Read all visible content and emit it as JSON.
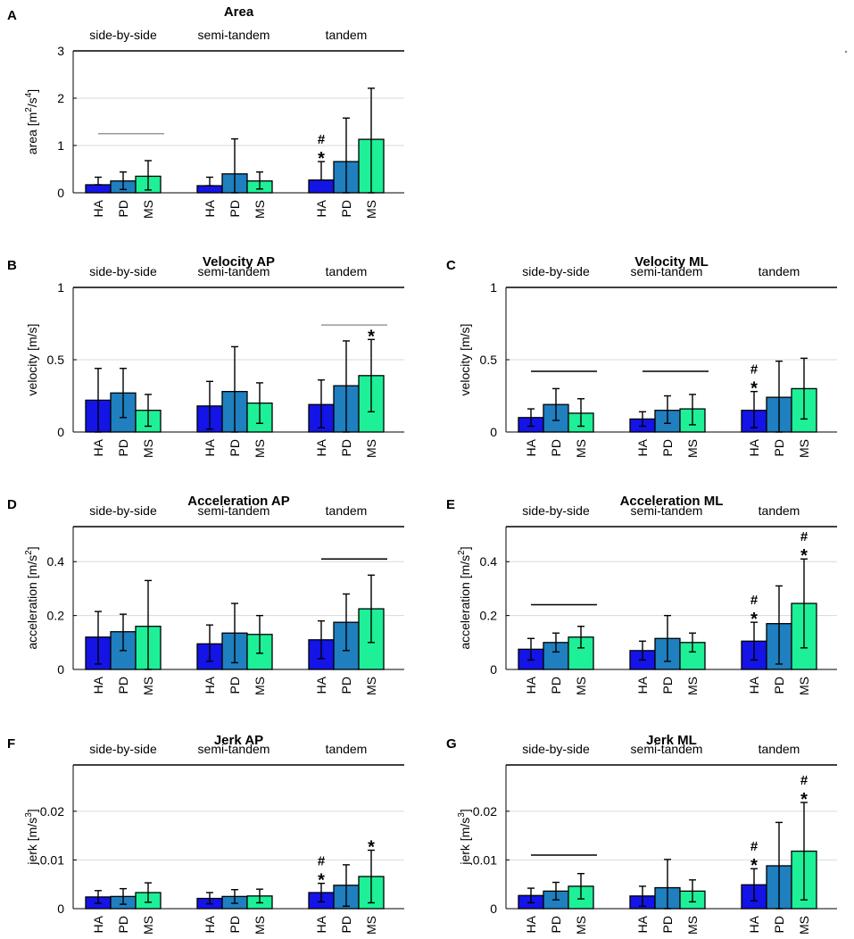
{
  "groups": [
    "side-by-side",
    "semi-tandem",
    "tandem"
  ],
  "categories": [
    "HA",
    "PD",
    "MS"
  ],
  "colors": {
    "HA": "#1414e6",
    "PD": "#1f7fbf",
    "MS": "#1ef098"
  },
  "chart_data": [
    {
      "id": "A",
      "letter": "A",
      "type": "bar",
      "title": "Area",
      "ylabel": "area [m²/s⁴]",
      "ylabel_main": "area [m",
      "ylabel_sup1": "2",
      "ylabel_mid": "/s",
      "ylabel_sup2": "4",
      "ylabel_end": "]",
      "ylim": [
        0,
        3
      ],
      "yticks": [
        0,
        1,
        2,
        3
      ],
      "ytick_labels": [
        "0",
        "1",
        "2",
        "3"
      ],
      "groups": [
        "side-by-side",
        "semi-tandem",
        "tandem"
      ],
      "series": [
        {
          "name": "HA",
          "values": [
            0.17,
            0.15,
            0.27
          ],
          "err_low": [
            0.17,
            0.15,
            0.27
          ],
          "err_high": [
            0.33,
            0.33,
            0.66
          ]
        },
        {
          "name": "PD",
          "values": [
            0.25,
            0.4,
            0.66
          ],
          "err_low": [
            0.07,
            0.0,
            0.0
          ],
          "err_high": [
            0.44,
            1.14,
            1.58
          ]
        },
        {
          "name": "MS",
          "values": [
            0.35,
            0.25,
            1.13
          ],
          "err_low": [
            0.06,
            0.08,
            0.0
          ],
          "err_high": [
            0.68,
            0.44,
            2.21
          ]
        }
      ],
      "annotations": [
        {
          "group": 2,
          "bar": 0,
          "symbols": [
            "#",
            "*"
          ]
        }
      ],
      "sig_lines": [
        {
          "group": 0,
          "y": 1.25,
          "color": "#999999"
        }
      ]
    },
    {
      "id": "B",
      "letter": "B",
      "type": "bar",
      "title": "Velocity AP",
      "ylabel": "velocity [m/s]",
      "ylim": [
        0,
        1
      ],
      "yticks": [
        0,
        0.5,
        1
      ],
      "ytick_labels": [
        "0",
        "0.5",
        "1"
      ],
      "groups": [
        "side-by-side",
        "semi-tandem",
        "tandem"
      ],
      "series": [
        {
          "name": "HA",
          "values": [
            0.22,
            0.18,
            0.19
          ],
          "err_low": [
            0.0,
            0.02,
            0.03
          ],
          "err_high": [
            0.44,
            0.35,
            0.36
          ]
        },
        {
          "name": "PD",
          "values": [
            0.27,
            0.28,
            0.32
          ],
          "err_low": [
            0.1,
            0.0,
            0.0
          ],
          "err_high": [
            0.44,
            0.59,
            0.63
          ]
        },
        {
          "name": "MS",
          "values": [
            0.15,
            0.2,
            0.39
          ],
          "err_low": [
            0.04,
            0.06,
            0.14
          ],
          "err_high": [
            0.26,
            0.34,
            0.64
          ]
        }
      ],
      "annotations": [
        {
          "group": 2,
          "bar": 2,
          "symbols": [
            "*"
          ]
        }
      ],
      "sig_lines": [
        {
          "group": 2,
          "y": 0.74,
          "color": "#999999"
        }
      ]
    },
    {
      "id": "C",
      "letter": "C",
      "type": "bar",
      "title": "Velocity ML",
      "ylabel": "velocity [m/s]",
      "ylim": [
        0,
        1
      ],
      "yticks": [
        0,
        0.5,
        1
      ],
      "ytick_labels": [
        "0",
        "0.5",
        "1"
      ],
      "groups": [
        "side-by-side",
        "semi-tandem",
        "tandem"
      ],
      "series": [
        {
          "name": "HA",
          "values": [
            0.1,
            0.09,
            0.15
          ],
          "err_low": [
            0.04,
            0.04,
            0.03
          ],
          "err_high": [
            0.16,
            0.14,
            0.28
          ]
        },
        {
          "name": "PD",
          "values": [
            0.19,
            0.15,
            0.24
          ],
          "err_low": [
            0.08,
            0.06,
            0.0
          ],
          "err_high": [
            0.3,
            0.25,
            0.49
          ]
        },
        {
          "name": "MS",
          "values": [
            0.13,
            0.16,
            0.3
          ],
          "err_low": [
            0.04,
            0.05,
            0.09
          ],
          "err_high": [
            0.23,
            0.26,
            0.51
          ]
        }
      ],
      "annotations": [
        {
          "group": 2,
          "bar": 0,
          "symbols": [
            "#",
            "*"
          ]
        }
      ],
      "sig_lines": [
        {
          "group": 0,
          "y": 0.42,
          "color": "#000000"
        },
        {
          "group": 1,
          "y": 0.42,
          "color": "#000000"
        }
      ]
    },
    {
      "id": "D",
      "letter": "D",
      "type": "bar",
      "title": "Acceleration AP",
      "ylabel": "acceleration [m/s²]",
      "ylabel_main": "acceleration [m/s",
      "ylabel_sup1": "2",
      "ylabel_mid": "",
      "ylabel_sup2": "",
      "ylabel_end": "]",
      "ylim": [
        0,
        0.53
      ],
      "yticks": [
        0,
        0.2,
        0.4
      ],
      "ytick_labels": [
        "0",
        "0.2",
        "0.4"
      ],
      "groups": [
        "side-by-side",
        "semi-tandem",
        "tandem"
      ],
      "series": [
        {
          "name": "HA",
          "values": [
            0.12,
            0.095,
            0.11
          ],
          "err_low": [
            0.02,
            0.03,
            0.04
          ],
          "err_high": [
            0.215,
            0.165,
            0.18
          ]
        },
        {
          "name": "PD",
          "values": [
            0.14,
            0.135,
            0.175
          ],
          "err_low": [
            0.07,
            0.025,
            0.07
          ],
          "err_high": [
            0.205,
            0.245,
            0.28
          ]
        },
        {
          "name": "MS",
          "values": [
            0.16,
            0.13,
            0.225
          ],
          "err_low": [
            0.0,
            0.06,
            0.1
          ],
          "err_high": [
            0.33,
            0.2,
            0.35
          ]
        }
      ],
      "annotations": [],
      "sig_lines": [
        {
          "group": 2,
          "y": 0.41,
          "color": "#000000"
        }
      ]
    },
    {
      "id": "E",
      "letter": "E",
      "type": "bar",
      "title": "Acceleration ML",
      "ylabel": "acceleration [m/s²]",
      "ylabel_main": "acceleration [m/s",
      "ylabel_sup1": "2",
      "ylabel_mid": "",
      "ylabel_sup2": "",
      "ylabel_end": "]",
      "ylim": [
        0,
        0.53
      ],
      "yticks": [
        0,
        0.2,
        0.4
      ],
      "ytick_labels": [
        "0",
        "0.2",
        "0.4"
      ],
      "groups": [
        "side-by-side",
        "semi-tandem",
        "tandem"
      ],
      "series": [
        {
          "name": "HA",
          "values": [
            0.075,
            0.07,
            0.105
          ],
          "err_low": [
            0.035,
            0.035,
            0.035
          ],
          "err_high": [
            0.115,
            0.105,
            0.175
          ]
        },
        {
          "name": "PD",
          "values": [
            0.1,
            0.115,
            0.17
          ],
          "err_low": [
            0.065,
            0.03,
            0.02
          ],
          "err_high": [
            0.135,
            0.2,
            0.31
          ]
        },
        {
          "name": "MS",
          "values": [
            0.12,
            0.1,
            0.245
          ],
          "err_low": [
            0.08,
            0.065,
            0.08
          ],
          "err_high": [
            0.16,
            0.135,
            0.41
          ]
        }
      ],
      "annotations": [
        {
          "group": 2,
          "bar": 0,
          "symbols": [
            "#",
            "*"
          ]
        },
        {
          "group": 2,
          "bar": 2,
          "symbols": [
            "#",
            "*"
          ]
        }
      ],
      "sig_lines": [
        {
          "group": 0,
          "y": 0.24,
          "color": "#000000"
        }
      ]
    },
    {
      "id": "F",
      "letter": "F",
      "type": "bar",
      "title": "Jerk AP",
      "ylabel": "jerk [m/s³]",
      "ylabel_main": "jerk [m/s",
      "ylabel_sup1": "3",
      "ylabel_mid": "",
      "ylabel_sup2": "",
      "ylabel_end": "]",
      "ylim": [
        0,
        0.0295
      ],
      "yticks": [
        0,
        0.01,
        0.02
      ],
      "ytick_labels": [
        "0",
        "0.01",
        "0.02"
      ],
      "groups": [
        "side-by-side",
        "semi-tandem",
        "tandem"
      ],
      "series": [
        {
          "name": "HA",
          "values": [
            0.0024,
            0.0021,
            0.0033
          ],
          "err_low": [
            0.0011,
            0.001,
            0.0014
          ],
          "err_high": [
            0.0037,
            0.0033,
            0.0052
          ]
        },
        {
          "name": "PD",
          "values": [
            0.0025,
            0.0025,
            0.0048
          ],
          "err_low": [
            0.0009,
            0.0011,
            0.0005
          ],
          "err_high": [
            0.0041,
            0.0039,
            0.009
          ]
        },
        {
          "name": "MS",
          "values": [
            0.0033,
            0.0026,
            0.0066
          ],
          "err_low": [
            0.0013,
            0.0012,
            0.0012
          ],
          "err_high": [
            0.0053,
            0.004,
            0.012
          ]
        }
      ],
      "annotations": [
        {
          "group": 2,
          "bar": 0,
          "symbols": [
            "#",
            "*"
          ]
        },
        {
          "group": 2,
          "bar": 2,
          "symbols": [
            "*"
          ]
        }
      ],
      "sig_lines": []
    },
    {
      "id": "G",
      "letter": "G",
      "type": "bar",
      "title": "Jerk ML",
      "ylabel": "jerk [m/s³]",
      "ylabel_main": "jerk [m/s",
      "ylabel_sup1": "3",
      "ylabel_mid": "",
      "ylabel_sup2": "",
      "ylabel_end": "]",
      "ylim": [
        0,
        0.0295
      ],
      "yticks": [
        0,
        0.01,
        0.02
      ],
      "ytick_labels": [
        "0",
        "0.01",
        "0.02"
      ],
      "groups": [
        "side-by-side",
        "semi-tandem",
        "tandem"
      ],
      "series": [
        {
          "name": "HA",
          "values": [
            0.0027,
            0.0026,
            0.0049
          ],
          "err_low": [
            0.0012,
            0.0005,
            0.0016
          ],
          "err_high": [
            0.0042,
            0.0046,
            0.0082
          ]
        },
        {
          "name": "PD",
          "values": [
            0.0036,
            0.0043,
            0.0088
          ],
          "err_low": [
            0.0018,
            0.0,
            0.0
          ],
          "err_high": [
            0.0054,
            0.0101,
            0.0177
          ]
        },
        {
          "name": "MS",
          "values": [
            0.0046,
            0.0036,
            0.0118
          ],
          "err_low": [
            0.002,
            0.0014,
            0.0018
          ],
          "err_high": [
            0.0072,
            0.0059,
            0.0218
          ]
        }
      ],
      "annotations": [
        {
          "group": 2,
          "bar": 0,
          "symbols": [
            "#",
            "*"
          ]
        },
        {
          "group": 2,
          "bar": 2,
          "symbols": [
            "#",
            "*"
          ]
        }
      ],
      "sig_lines": [
        {
          "group": 0,
          "y": 0.011,
          "color": "#000000"
        }
      ]
    }
  ]
}
